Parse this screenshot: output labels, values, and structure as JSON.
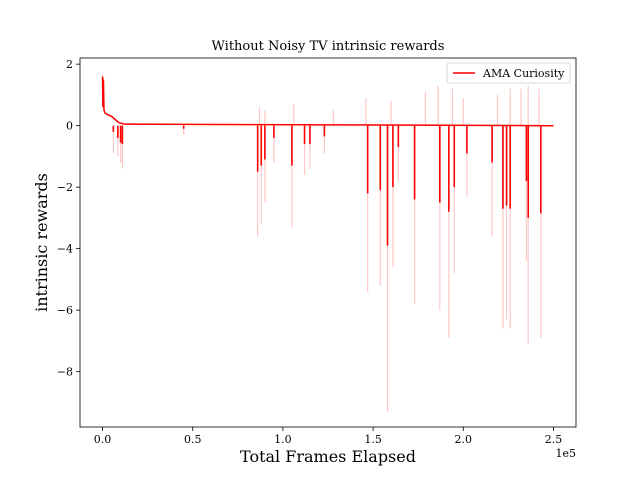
{
  "chart_data": {
    "type": "line",
    "title": "Without Noisy TV  intrinsic rewards",
    "xlabel": "Total Frames Elapsed",
    "ylabel": "intrinsic rewards",
    "x_offset_label": "1e5",
    "x_scale": 100000,
    "xlim": [
      -12500,
      262500
    ],
    "ylim": [
      -9.8,
      2.2
    ],
    "x_ticks": [
      0,
      50000,
      100000,
      150000,
      200000,
      250000
    ],
    "x_tick_labels": [
      "0.0",
      "0.5",
      "1.0",
      "1.5",
      "2.0",
      "2.5"
    ],
    "y_ticks": [
      2,
      0,
      -2,
      -4,
      -6,
      -8
    ],
    "y_tick_labels": [
      "2",
      "0",
      "−2",
      "−4",
      "−6",
      "−8"
    ],
    "grid": false,
    "legend_position": "top-right",
    "series": [
      {
        "name": "AMA Curiosity",
        "color": "#ff0000",
        "raw_color": "#ffc8c8",
        "x_start": 0,
        "x_end": 250000,
        "baseline": 0.0,
        "initial": [
          {
            "x": 0,
            "y": 1.6
          },
          {
            "x": 200,
            "y": 0.6
          },
          {
            "x": 500,
            "y": 1.5
          },
          {
            "x": 800,
            "y": 0.5
          },
          {
            "x": 1500,
            "y": 0.4
          },
          {
            "x": 3000,
            "y": 0.35
          },
          {
            "x": 5000,
            "y": 0.3
          },
          {
            "x": 7000,
            "y": 0.2
          },
          {
            "x": 9000,
            "y": 0.1
          },
          {
            "x": 12000,
            "y": 0.05
          }
        ],
        "dips": [
          {
            "x": 6000,
            "smooth": -0.2,
            "raw": -0.9
          },
          {
            "x": 8500,
            "smooth": -0.4,
            "raw": -1.0
          },
          {
            "x": 10000,
            "smooth": -0.55,
            "raw": -1.2
          },
          {
            "x": 11000,
            "smooth": -0.6,
            "raw": -1.4
          },
          {
            "x": 45000,
            "smooth": -0.1,
            "raw": -0.3
          },
          {
            "x": 86000,
            "smooth": -1.5,
            "raw": -3.6
          },
          {
            "x": 88000,
            "smooth": -1.3,
            "raw": -3.2
          },
          {
            "x": 90000,
            "smooth": -1.1,
            "raw": -2.5
          },
          {
            "x": 95000,
            "smooth": -0.4,
            "raw": -1.2
          },
          {
            "x": 105000,
            "smooth": -1.3,
            "raw": -3.3
          },
          {
            "x": 112000,
            "smooth": -0.6,
            "raw": -1.6
          },
          {
            "x": 115000,
            "smooth": -0.6,
            "raw": -1.4
          },
          {
            "x": 123000,
            "smooth": -0.35,
            "raw": -0.9
          },
          {
            "x": 147000,
            "smooth": -2.2,
            "raw": -5.4
          },
          {
            "x": 154000,
            "smooth": -2.1,
            "raw": -5.2
          },
          {
            "x": 158000,
            "smooth": -3.9,
            "raw": -9.3
          },
          {
            "x": 161000,
            "smooth": -2.0,
            "raw": -4.6
          },
          {
            "x": 164000,
            "smooth": -0.7,
            "raw": -1.8
          },
          {
            "x": 173000,
            "smooth": -2.4,
            "raw": -5.8
          },
          {
            "x": 187000,
            "smooth": -2.5,
            "raw": -6.0
          },
          {
            "x": 192000,
            "smooth": -2.8,
            "raw": -6.9
          },
          {
            "x": 195000,
            "smooth": -2.0,
            "raw": -4.8
          },
          {
            "x": 202000,
            "smooth": -0.9,
            "raw": -2.3
          },
          {
            "x": 216000,
            "smooth": -1.2,
            "raw": -3.6
          },
          {
            "x": 222000,
            "smooth": -2.7,
            "raw": -6.6
          },
          {
            "x": 224000,
            "smooth": -2.6,
            "raw": -6.3
          },
          {
            "x": 226000,
            "smooth": -2.7,
            "raw": -6.6
          },
          {
            "x": 235000,
            "smooth": -1.8,
            "raw": -4.4
          },
          {
            "x": 236000,
            "smooth": -3.0,
            "raw": -7.1
          },
          {
            "x": 243000,
            "smooth": -2.85,
            "raw": -6.9
          }
        ],
        "spikes": [
          {
            "x": 87000,
            "raw": 0.6
          },
          {
            "x": 90000,
            "raw": 0.5
          },
          {
            "x": 106000,
            "raw": 0.7
          },
          {
            "x": 128000,
            "raw": 0.5
          },
          {
            "x": 146000,
            "raw": 0.9
          },
          {
            "x": 160000,
            "raw": 0.8
          },
          {
            "x": 179000,
            "raw": 1.1
          },
          {
            "x": 186000,
            "raw": 1.3
          },
          {
            "x": 194000,
            "raw": 1.2
          },
          {
            "x": 200000,
            "raw": 0.9
          },
          {
            "x": 219000,
            "raw": 1.0
          },
          {
            "x": 226000,
            "raw": 1.2
          },
          {
            "x": 232000,
            "raw": 1.2
          },
          {
            "x": 236000,
            "raw": 1.3
          },
          {
            "x": 242000,
            "raw": 1.2
          }
        ]
      }
    ]
  }
}
